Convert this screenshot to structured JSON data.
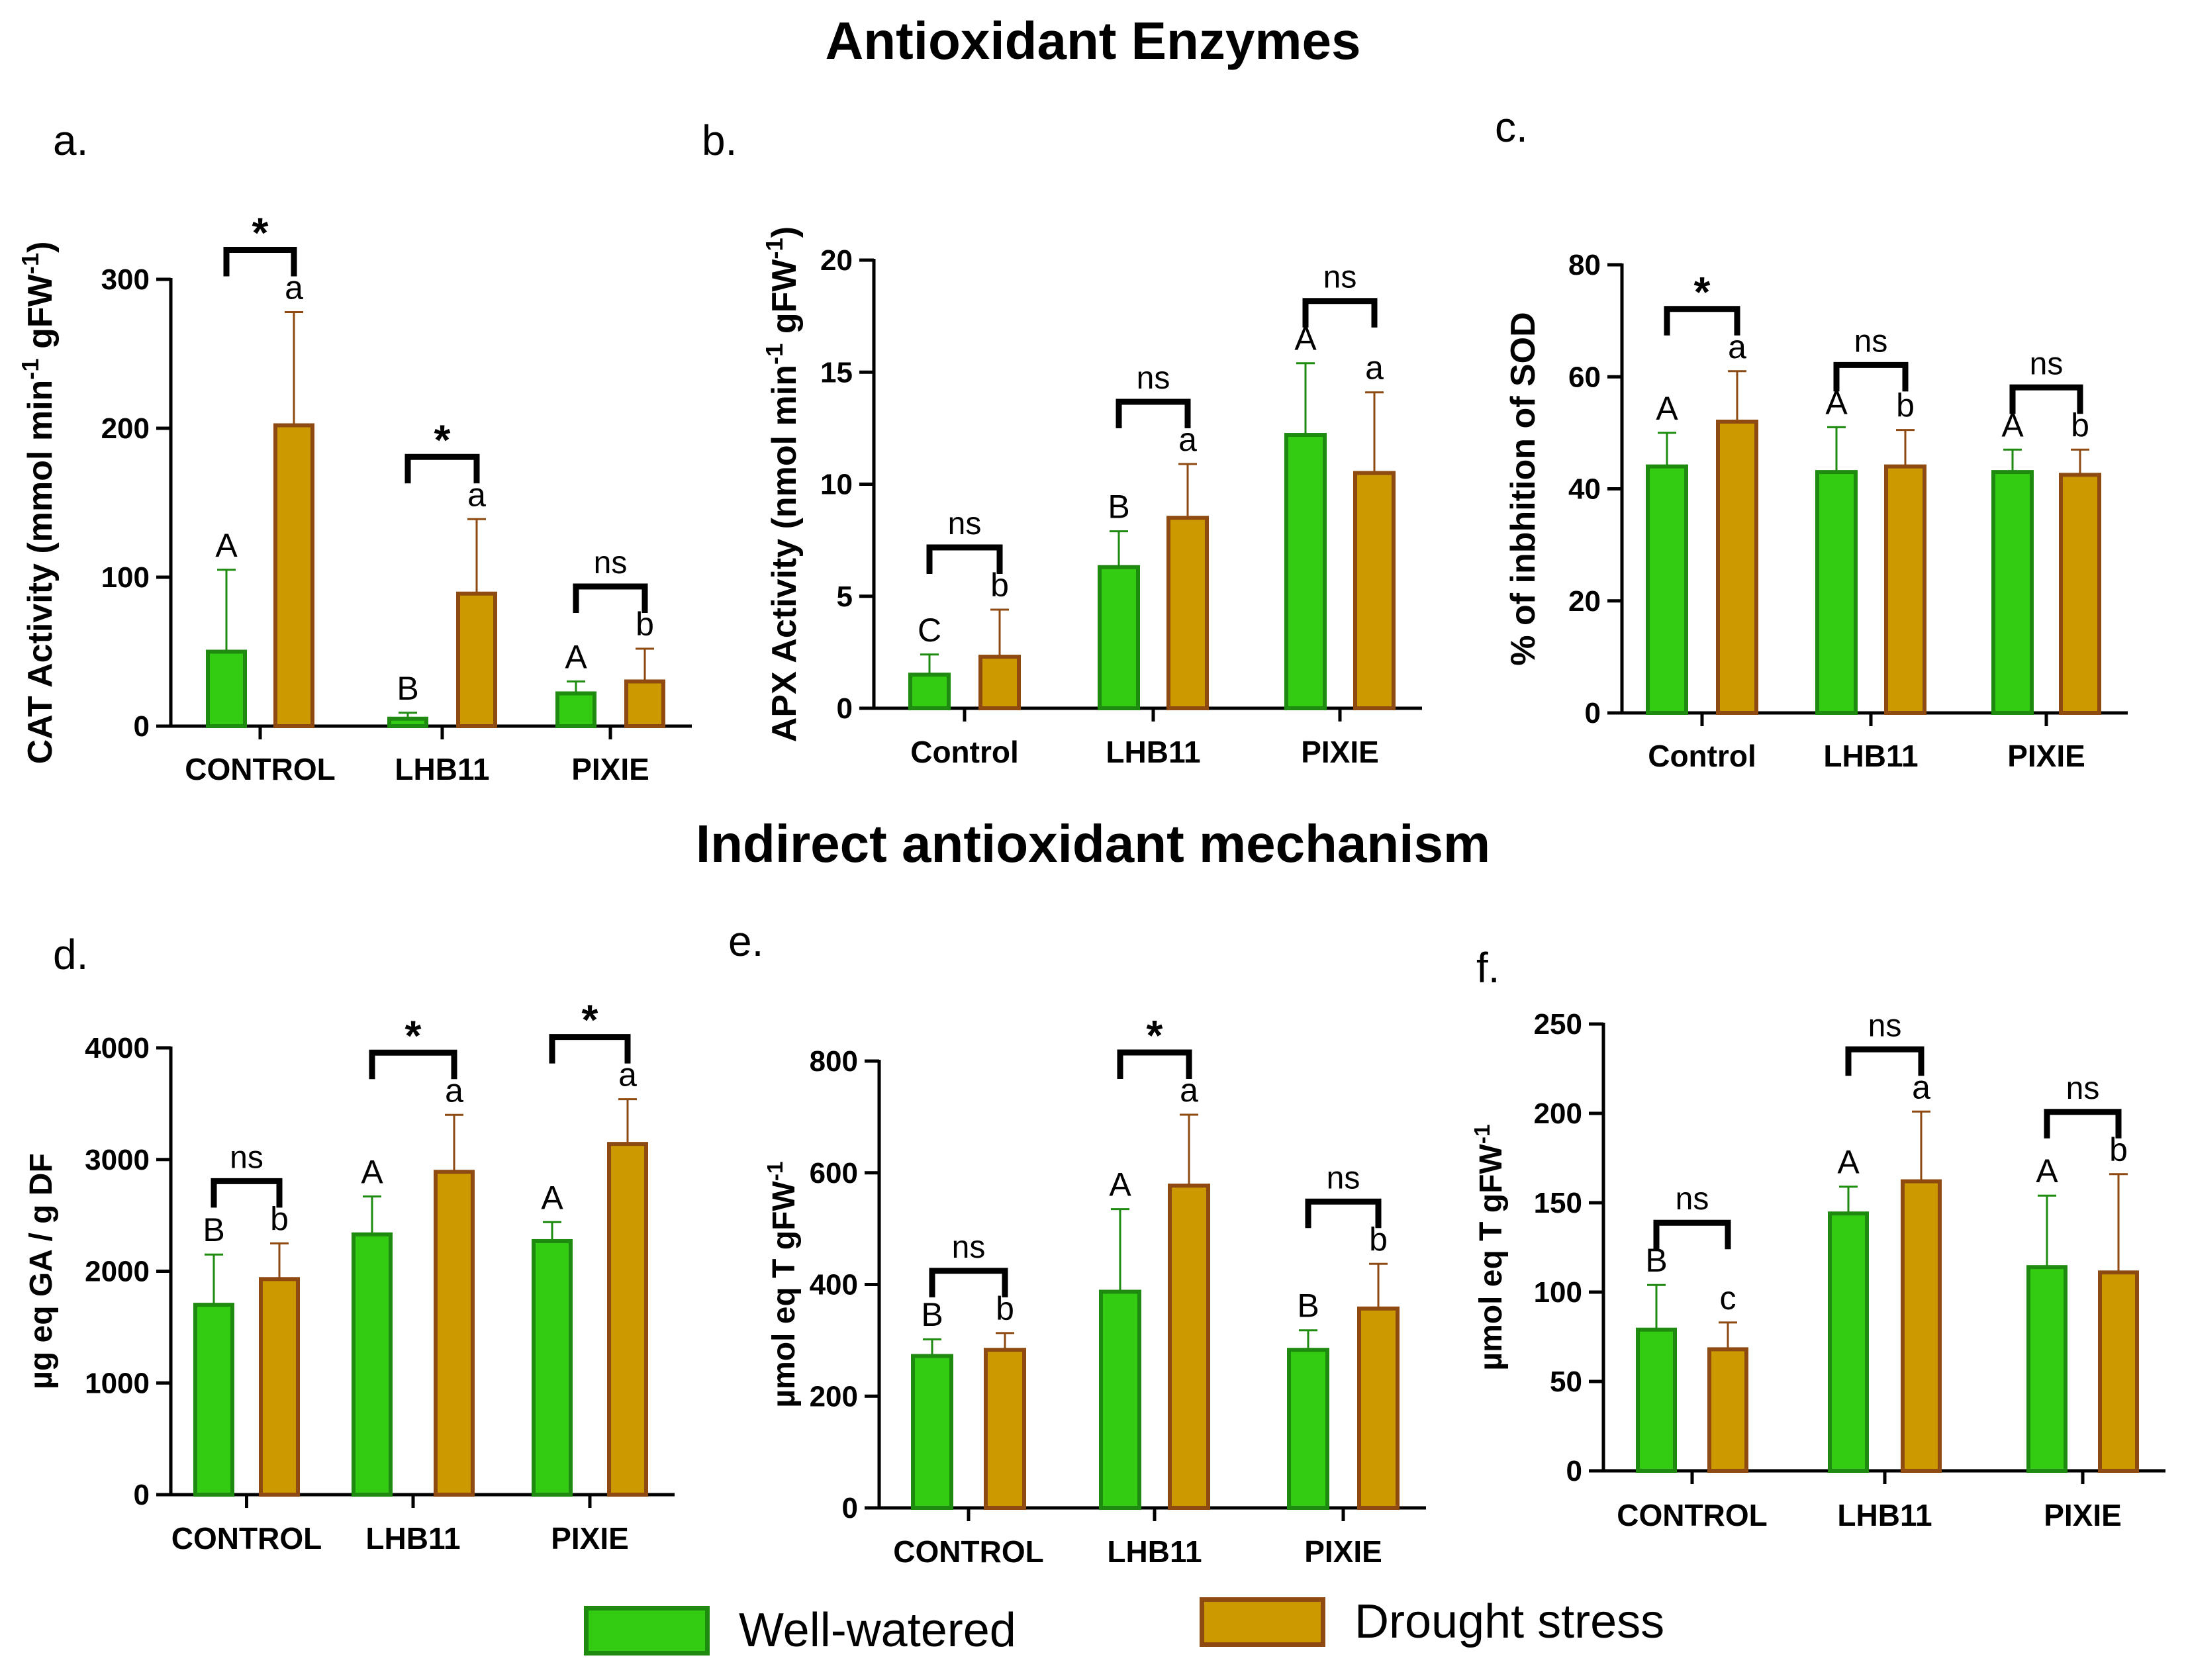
{
  "titles": {
    "top": "Antioxidant Enzymes",
    "middle": "Indirect antioxidant mechanism"
  },
  "colors": {
    "well_fill": "#33CC12",
    "well_edge": "#1E8A0F",
    "drought_fill": "#CC9A00",
    "drought_edge": "#8E4A10"
  },
  "legend": [
    {
      "label": "Well-watered",
      "series": "well"
    },
    {
      "label": "Drought stress",
      "series": "drought"
    }
  ],
  "chart_data": [
    {
      "id": "a",
      "panel_label": "a.",
      "type": "bar",
      "categories": [
        "CONTROL",
        "LHB11",
        "PIXIE"
      ],
      "ylabel": "CAT Activity (mmol min^-1 gFW^-1)",
      "ylim": [
        0,
        300
      ],
      "yticks": [
        0,
        100,
        200,
        300
      ],
      "series": [
        {
          "name": "Well-watered",
          "key": "well",
          "values": [
            50,
            5,
            22
          ],
          "errors": [
            55,
            4,
            8
          ],
          "letters": [
            "A",
            "B",
            "A"
          ]
        },
        {
          "name": "Drought stress",
          "key": "drought",
          "values": [
            202,
            89,
            30
          ],
          "errors": [
            76,
            50,
            22
          ],
          "letters": [
            "a",
            "a",
            "b"
          ]
        }
      ],
      "significance": [
        "*",
        "*",
        "ns"
      ]
    },
    {
      "id": "b",
      "panel_label": "b.",
      "type": "bar",
      "categories": [
        "Control",
        "LHB11",
        "PIXIE"
      ],
      "ylabel": "APX Activity (nmol min^-1 gFW^-1)",
      "ylim": [
        0,
        20
      ],
      "yticks": [
        0,
        5,
        10,
        15,
        20
      ],
      "series": [
        {
          "name": "Well-watered",
          "key": "well",
          "values": [
            1.5,
            6.3,
            12.2
          ],
          "errors": [
            0.9,
            1.6,
            3.2
          ],
          "letters": [
            "C",
            "B",
            "A"
          ]
        },
        {
          "name": "Drought stress",
          "key": "drought",
          "values": [
            2.3,
            8.5,
            10.5
          ],
          "errors": [
            2.1,
            2.4,
            3.6
          ],
          "letters": [
            "b",
            "a",
            "a"
          ]
        }
      ],
      "significance": [
        "ns",
        "ns",
        "ns"
      ]
    },
    {
      "id": "c",
      "panel_label": "c.",
      "type": "bar",
      "categories": [
        "Control",
        "LHB11",
        "PIXIE"
      ],
      "ylabel": "% of inbhition of SOD",
      "ylim": [
        0,
        80
      ],
      "yticks": [
        0,
        20,
        40,
        60,
        80
      ],
      "series": [
        {
          "name": "Well-watered",
          "key": "well",
          "values": [
            44,
            43,
            43
          ],
          "errors": [
            6,
            8,
            4
          ],
          "letters": [
            "A",
            "A",
            "A"
          ]
        },
        {
          "name": "Drought stress",
          "key": "drought",
          "values": [
            52,
            44,
            42.5
          ],
          "errors": [
            9,
            6.5,
            4.5
          ],
          "letters": [
            "a",
            "b",
            "b"
          ]
        }
      ],
      "significance": [
        "*",
        "ns",
        "ns"
      ]
    },
    {
      "id": "d",
      "panel_label": "d.",
      "type": "bar",
      "categories": [
        "CONTROL",
        "LHB11",
        "PIXIE"
      ],
      "ylabel": "µg eq GA / g DF",
      "ylim": [
        0,
        4000
      ],
      "yticks": [
        0,
        1000,
        2000,
        3000,
        4000
      ],
      "series": [
        {
          "name": "Well-watered",
          "key": "well",
          "values": [
            1700,
            2330,
            2270
          ],
          "errors": [
            450,
            340,
            170
          ],
          "letters": [
            "B",
            "A",
            "A"
          ]
        },
        {
          "name": "Drought stress",
          "key": "drought",
          "values": [
            1930,
            2890,
            3140
          ],
          "errors": [
            320,
            510,
            400
          ],
          "letters": [
            "b",
            "a",
            "a"
          ]
        }
      ],
      "significance": [
        "ns",
        "*",
        "*"
      ]
    },
    {
      "id": "e",
      "panel_label": "e.",
      "type": "bar",
      "categories": [
        "CONTROL",
        "LHB11",
        "PIXIE"
      ],
      "ylabel": "µmol eq T gFW^-1",
      "ylim": [
        0,
        800
      ],
      "yticks": [
        0,
        200,
        400,
        600,
        800
      ],
      "series": [
        {
          "name": "Well-watered",
          "key": "well",
          "values": [
            272,
            387,
            283
          ],
          "errors": [
            30,
            148,
            35
          ],
          "letters": [
            "B",
            "A",
            "B"
          ]
        },
        {
          "name": "Drought stress",
          "key": "drought",
          "values": [
            283,
            577,
            357
          ],
          "errors": [
            30,
            127,
            80
          ],
          "letters": [
            "b",
            "a",
            "b"
          ]
        }
      ],
      "significance": [
        "ns",
        "*",
        "ns"
      ]
    },
    {
      "id": "f",
      "panel_label": "f.",
      "type": "bar",
      "categories": [
        "CONTROL",
        "LHB11",
        "PIXIE"
      ],
      "ylabel": "µmol eq T gFW^-1",
      "ylim": [
        0,
        250
      ],
      "yticks": [
        0,
        50,
        100,
        150,
        200,
        250
      ],
      "series": [
        {
          "name": "Well-watered",
          "key": "well",
          "values": [
            79,
            144,
            114
          ],
          "errors": [
            25,
            15,
            40
          ],
          "letters": [
            "B",
            "A",
            "A"
          ]
        },
        {
          "name": "Drought stress",
          "key": "drought",
          "values": [
            68,
            162,
            111
          ],
          "errors": [
            15,
            39,
            55
          ],
          "letters": [
            "c",
            "a",
            "b"
          ]
        }
      ],
      "significance": [
        "ns",
        "ns",
        "ns"
      ]
    }
  ]
}
